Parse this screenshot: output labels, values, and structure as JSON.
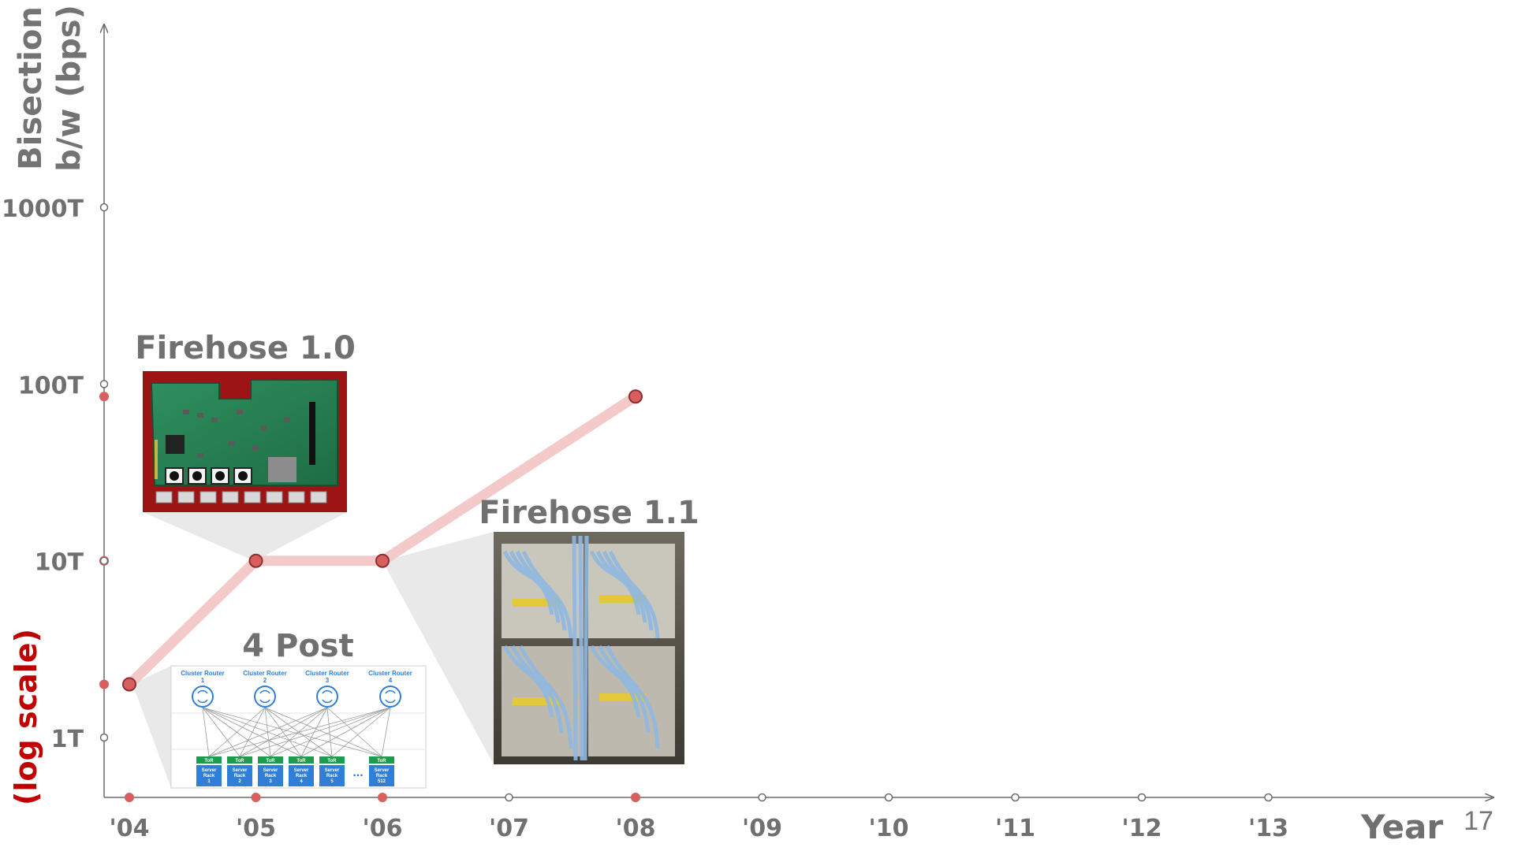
{
  "chart_data": {
    "type": "line",
    "ylabel": "Bisection b/w (bps)",
    "ylabel_lines": [
      "Bisection",
      "b/w (bps)"
    ],
    "yscale_note": "(log scale)",
    "xlabel": "Year",
    "y_scale": "log",
    "y_ticks": [
      {
        "label": "1T",
        "value": 1
      },
      {
        "label": "10T",
        "value": 10
      },
      {
        "label": "100T",
        "value": 100
      },
      {
        "label": "1000T",
        "value": 1000
      }
    ],
    "x_ticks": [
      "'04",
      "'05",
      "'06",
      "'07",
      "'08",
      "'09",
      "'10",
      "'11",
      "'12",
      "'13"
    ],
    "highlighted_years": [
      "'04",
      "'05",
      "'06",
      "'08"
    ],
    "series": [
      {
        "color": "#f4c9c9",
        "points": [
          {
            "x": "'04",
            "y": 2
          },
          {
            "x": "'05",
            "y": 10
          },
          {
            "x": "'06",
            "y": 10
          },
          {
            "x": "'08",
            "y": 85
          }
        ]
      }
    ],
    "callouts": [
      {
        "title": "Firehose 1.0",
        "anchor": "'05",
        "image": "circuit-board-photo"
      },
      {
        "title": "Firehose 1.1",
        "anchor": "'06",
        "image": "cabled-rack-photo"
      },
      {
        "title": "4 Post",
        "anchor": "'04",
        "image": "topology-diagram"
      }
    ],
    "grid": false,
    "legend": "none"
  },
  "diagram": {
    "routers": [
      {
        "label": "Cluster Router",
        "num": "1"
      },
      {
        "label": "Cluster Router",
        "num": "2"
      },
      {
        "label": "Cluster Router",
        "num": "3"
      },
      {
        "label": "Cluster Router",
        "num": "4"
      }
    ],
    "tor_label": "ToR",
    "racks": [
      {
        "label": "Server",
        "sub": "Rack",
        "num": "1"
      },
      {
        "label": "Server",
        "sub": "Rack",
        "num": "2"
      },
      {
        "label": "Server",
        "sub": "Rack",
        "num": "3"
      },
      {
        "label": "Server",
        "sub": "Rack",
        "num": "4"
      },
      {
        "label": "Server",
        "sub": "Rack",
        "num": "5"
      },
      {
        "label": "Server",
        "sub": "Rack",
        "num": "512"
      }
    ],
    "ellipsis": "..."
  },
  "slide_number": "17",
  "colors": {
    "axis": "#6b6b6b",
    "line": "#f4c9c9",
    "point_fill": "#d95f5f",
    "point_stroke": "#8a3030",
    "accent_red": "#c00000",
    "diagram_blue": "#2f7fd9",
    "diagram_green": "#1e9b4e"
  }
}
